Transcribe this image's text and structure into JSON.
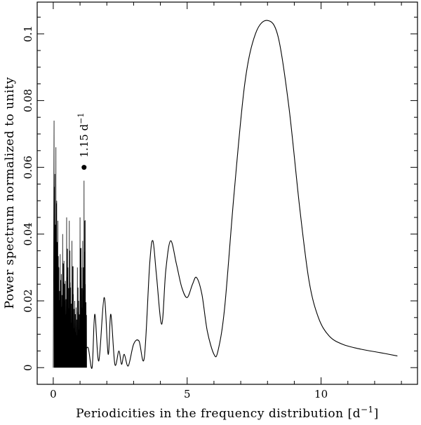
{
  "chart_data": {
    "type": "line",
    "title": "",
    "xlabel": "Periodicities in the frequency distribution [d",
    "xlabel_sup": "−1",
    "xlabel_close": "]",
    "ylabel": "Power spectrum normalized to unity",
    "xlim": [
      -0.6,
      13.6
    ],
    "ylim": [
      -0.005,
      0.1095
    ],
    "x_ticks": [
      {
        "value": 0,
        "label": "0"
      },
      {
        "value": 5,
        "label": "5"
      },
      {
        "value": 10,
        "label": "10"
      }
    ],
    "y_ticks": [
      {
        "value": 0,
        "label": "0"
      },
      {
        "value": 0.02,
        "label": "0.02"
      },
      {
        "value": 0.04,
        "label": "0.04"
      },
      {
        "value": 0.06,
        "label": "0.06"
      },
      {
        "value": 0.08,
        "label": "0.08"
      },
      {
        "value": 0.1,
        "label": "0.1"
      }
    ],
    "smooth_series": [
      [
        1.15,
        0.004
      ],
      [
        1.3,
        0.006
      ],
      [
        1.45,
        0.0
      ],
      [
        1.55,
        0.016
      ],
      [
        1.7,
        0.002
      ],
      [
        1.9,
        0.021
      ],
      [
        2.05,
        0.004
      ],
      [
        2.15,
        0.016
      ],
      [
        2.3,
        0.001
      ],
      [
        2.45,
        0.005
      ],
      [
        2.55,
        0.001
      ],
      [
        2.65,
        0.004
      ],
      [
        2.8,
        0.0005
      ],
      [
        3.0,
        0.007
      ],
      [
        3.2,
        0.008
      ],
      [
        3.4,
        0.003
      ],
      [
        3.6,
        0.031
      ],
      [
        3.72,
        0.038
      ],
      [
        3.85,
        0.028
      ],
      [
        4.05,
        0.013
      ],
      [
        4.2,
        0.029
      ],
      [
        4.38,
        0.038
      ],
      [
        4.6,
        0.031
      ],
      [
        4.8,
        0.024
      ],
      [
        5.0,
        0.021
      ],
      [
        5.2,
        0.025
      ],
      [
        5.35,
        0.027
      ],
      [
        5.55,
        0.022
      ],
      [
        5.75,
        0.011
      ],
      [
        6.0,
        0.004
      ],
      [
        6.15,
        0.005
      ],
      [
        6.4,
        0.018
      ],
      [
        6.75,
        0.052
      ],
      [
        7.15,
        0.085
      ],
      [
        7.55,
        0.1
      ],
      [
        8.0,
        0.104
      ],
      [
        8.4,
        0.099
      ],
      [
        8.8,
        0.078
      ],
      [
        9.2,
        0.048
      ],
      [
        9.55,
        0.026
      ],
      [
        9.9,
        0.015
      ],
      [
        10.3,
        0.0095
      ],
      [
        10.8,
        0.007
      ],
      [
        11.5,
        0.0055
      ],
      [
        12.2,
        0.0045
      ],
      [
        12.85,
        0.0035
      ]
    ],
    "noisy_region": {
      "x_start": 0.0,
      "x_end": 1.25,
      "spikes": [
        [
          0.03,
          0.074
        ],
        [
          0.06,
          0.058
        ],
        [
          0.1,
          0.066
        ],
        [
          0.13,
          0.05
        ],
        [
          0.17,
          0.044
        ],
        [
          0.21,
          0.03
        ],
        [
          0.26,
          0.034
        ],
        [
          0.3,
          0.028
        ],
        [
          0.35,
          0.04
        ],
        [
          0.4,
          0.032
        ],
        [
          0.45,
          0.026
        ],
        [
          0.5,
          0.045
        ],
        [
          0.55,
          0.03
        ],
        [
          0.6,
          0.044
        ],
        [
          0.65,
          0.024
        ],
        [
          0.7,
          0.038
        ],
        [
          0.75,
          0.022
        ],
        [
          0.8,
          0.02
        ],
        [
          0.85,
          0.018
        ],
        [
          0.9,
          0.03
        ],
        [
          0.95,
          0.02
        ],
        [
          1.0,
          0.045
        ],
        [
          1.05,
          0.03
        ],
        [
          1.1,
          0.038
        ],
        [
          1.15,
          0.056
        ],
        [
          1.2,
          0.025
        ]
      ]
    },
    "annotation": {
      "text_main": "1.15 d",
      "text_sup": "−1",
      "x": 1.15,
      "y": 0.06
    }
  }
}
